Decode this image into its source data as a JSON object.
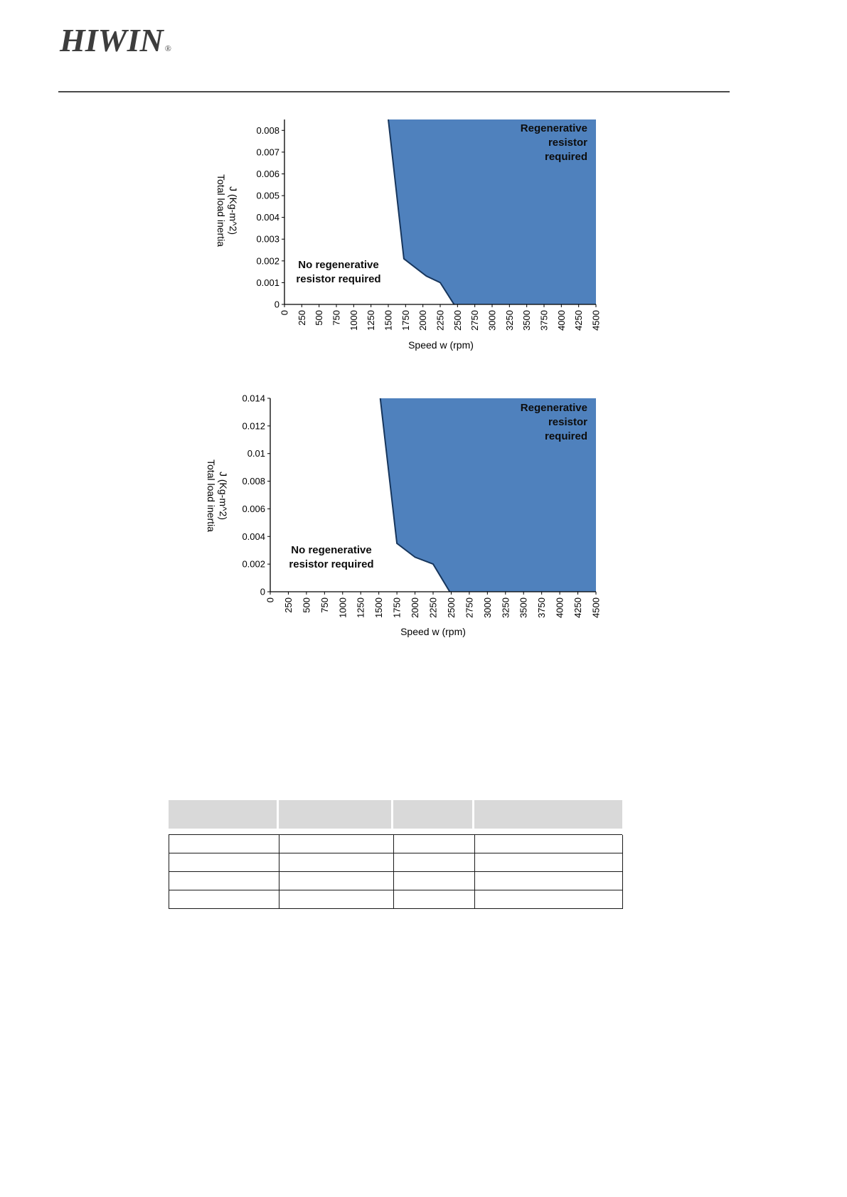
{
  "header": {
    "logo_text": "HIWIN",
    "registered": "®"
  },
  "chart_data": [
    {
      "type": "area",
      "title": "",
      "xlabel": "Speed w (rpm)",
      "ylabel_lines": [
        "Total load inertia",
        "J (Kg-m^2)"
      ],
      "xlim": [
        0,
        4500
      ],
      "ylim": [
        0,
        0.0085
      ],
      "xticks": [
        "0",
        "250",
        "500",
        "750",
        "1000",
        "1250",
        "1500",
        "1750",
        "2000",
        "2250",
        "2500",
        "2750",
        "3000",
        "3250",
        "3500",
        "3750",
        "4000",
        "4250",
        "4500"
      ],
      "yticks": [
        "0",
        "0.001",
        "0.002",
        "0.003",
        "0.004",
        "0.005",
        "0.006",
        "0.007",
        "0.008"
      ],
      "boundary": [
        [
          1500,
          0.0085
        ],
        [
          1725,
          0.0021
        ],
        [
          2050,
          0.0013
        ],
        [
          2250,
          0.001
        ],
        [
          2450,
          0
        ]
      ],
      "annotations": {
        "filled_lines": [
          "Regenerative",
          "resistor",
          "required"
        ],
        "empty_lines": [
          "No regenerative",
          "resistor required"
        ]
      },
      "fill_color": "#4f81bd",
      "line_color": "#17365d",
      "legend": "none",
      "grid": false
    },
    {
      "type": "area",
      "title": "",
      "xlabel": "Speed w (rpm)",
      "ylabel_lines": [
        "Total load inertia",
        "J (Kg-m^2)"
      ],
      "xlim": [
        0,
        4500
      ],
      "ylim": [
        0,
        0.014
      ],
      "xticks": [
        "0",
        "250",
        "500",
        "750",
        "1000",
        "1250",
        "1500",
        "1750",
        "2000",
        "2250",
        "2500",
        "2750",
        "3000",
        "3250",
        "3500",
        "3750",
        "4000",
        "4250",
        "4500"
      ],
      "yticks": [
        "0",
        "0.002",
        "0.004",
        "0.006",
        "0.008",
        "0.01",
        "0.012",
        "0.014"
      ],
      "boundary": [
        [
          1520,
          0.014
        ],
        [
          1750,
          0.0035
        ],
        [
          2000,
          0.0025
        ],
        [
          2250,
          0.002
        ],
        [
          2480,
          0
        ]
      ],
      "annotations": {
        "filled_lines": [
          "Regenerative",
          "resistor",
          "required"
        ],
        "empty_lines": [
          "No regenerative",
          "resistor required"
        ]
      },
      "fill_color": "#4f81bd",
      "line_color": "#17365d",
      "legend": "none",
      "grid": false
    }
  ],
  "table": {
    "header_bg": "#d9d9d9",
    "columns": [
      "",
      "",
      "",
      ""
    ],
    "rows": [
      [
        "",
        "",
        "",
        ""
      ],
      [
        "",
        "",
        "",
        ""
      ],
      [
        "",
        "",
        "",
        ""
      ],
      [
        "",
        "",
        "",
        ""
      ]
    ]
  }
}
